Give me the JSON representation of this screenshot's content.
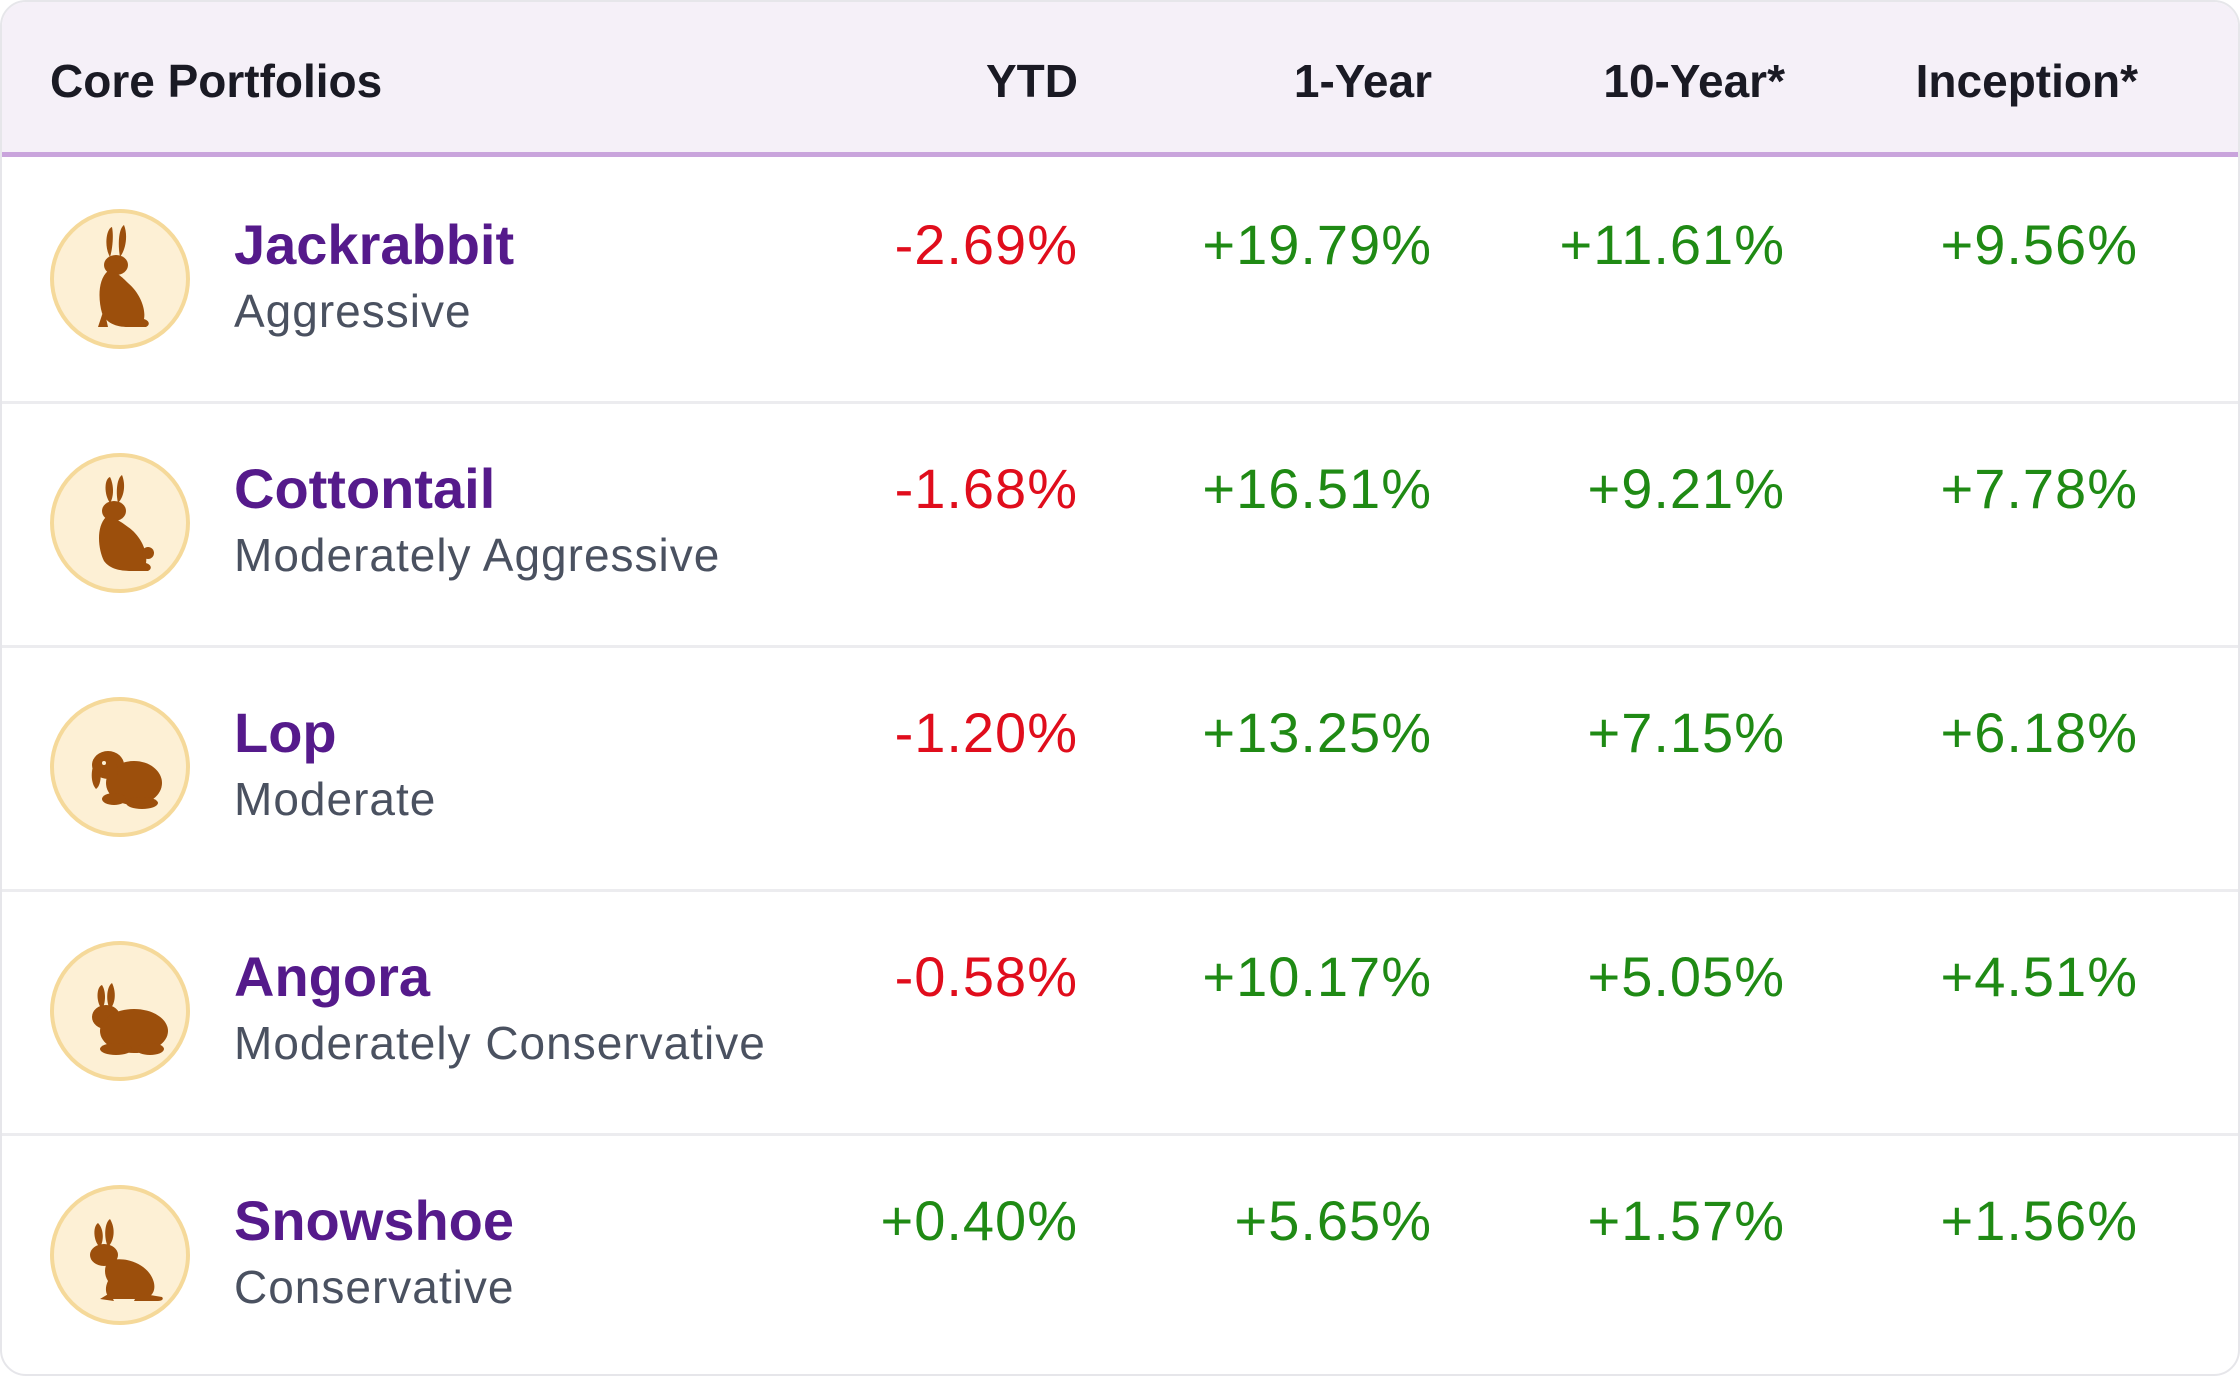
{
  "table": {
    "headers": {
      "portfolios": "Core Portfolios",
      "ytd": "YTD",
      "one_year": "1-Year",
      "ten_year": "10-Year*",
      "inception": "Inception*"
    },
    "rows": [
      {
        "name": "Jackrabbit",
        "risk": "Aggressive",
        "icon": "jackrabbit-icon",
        "ytd": "-2.69%",
        "one_year": "+19.79%",
        "ten_year": "+11.61%",
        "inception": "+9.56%"
      },
      {
        "name": "Cottontail",
        "risk": "Moderately Aggressive",
        "icon": "cottontail-icon",
        "ytd": "-1.68%",
        "one_year": "+16.51%",
        "ten_year": "+9.21%",
        "inception": "+7.78%"
      },
      {
        "name": "Lop",
        "risk": "Moderate",
        "icon": "lop-rabbit-icon",
        "ytd": "-1.20%",
        "one_year": "+13.25%",
        "ten_year": "+7.15%",
        "inception": "+6.18%"
      },
      {
        "name": "Angora",
        "risk": "Moderately Conservative",
        "icon": "angora-rabbit-icon",
        "ytd": "-0.58%",
        "one_year": "+10.17%",
        "ten_year": "+5.05%",
        "inception": "+4.51%"
      },
      {
        "name": "Snowshoe",
        "risk": "Conservative",
        "icon": "snowshoe-hare-icon",
        "ytd": "+0.40%",
        "one_year": "+5.65%",
        "ten_year": "+1.57%",
        "inception": "+1.56%"
      }
    ]
  },
  "colors": {
    "header_bg": "#f5f0f8",
    "header_border": "#c9a4dc",
    "name": "#551a8b",
    "negative": "#e00d1c",
    "positive": "#1f8a14",
    "avatar_bg": "#fdf0d5",
    "rabbit": "#9c4f0c"
  }
}
